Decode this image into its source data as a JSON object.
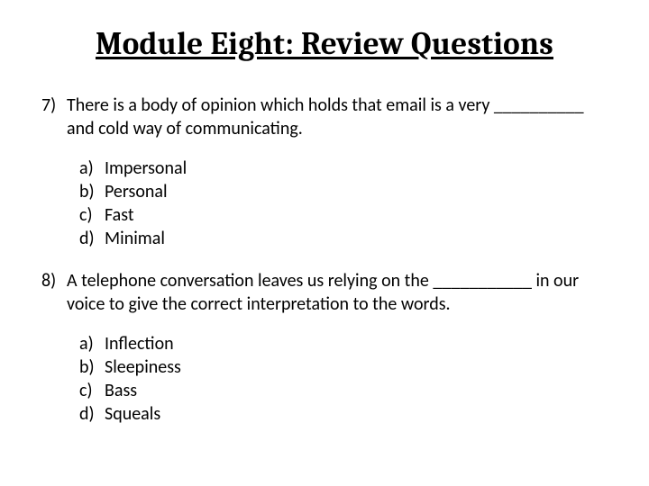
{
  "title": "Module Eight: Review Questions",
  "questions": [
    {
      "number": "7)",
      "text": "There is a body of opinion which holds that email is a very __________ and cold way of communicating.",
      "options": [
        {
          "letter": "a)",
          "text": "Impersonal"
        },
        {
          "letter": "b)",
          "text": "Personal"
        },
        {
          "letter": "c)",
          "text": "Fast"
        },
        {
          "letter": "d)",
          "text": "Minimal"
        }
      ]
    },
    {
      "number": "8)",
      "text": "A telephone conversation leaves us relying on the ___________ in our voice to give the correct interpretation to the words.",
      "options": [
        {
          "letter": "a)",
          "text": "Inflection"
        },
        {
          "letter": "b)",
          "text": "Sleepiness"
        },
        {
          "letter": "c)",
          "text": "Bass"
        },
        {
          "letter": "d)",
          "text": "Squeals"
        }
      ]
    }
  ],
  "colors": {
    "background": "#ffffff",
    "text": "#000000"
  },
  "fonts": {
    "title_family": "Cambria, Georgia, serif",
    "body_family": "Calibri, Segoe UI, Arial, sans-serif",
    "title_size_pt": 26,
    "body_size_pt": 15
  }
}
